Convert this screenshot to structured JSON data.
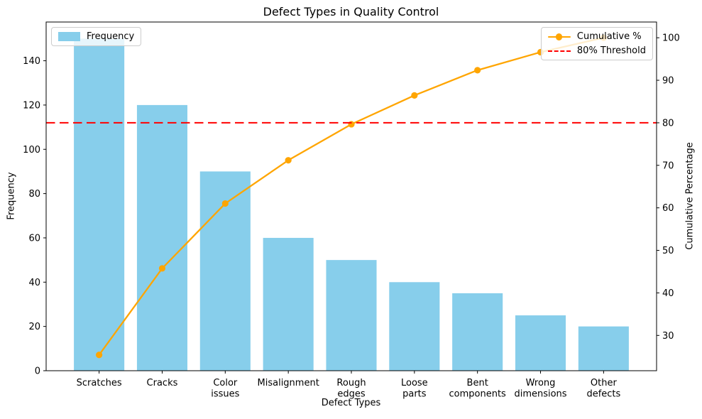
{
  "chart_data": {
    "type": "bar",
    "subtype": "pareto",
    "title": "Defect Types in Quality Control",
    "xlabel": "Defect Types",
    "ylabel_left": "Frequency",
    "ylabel_right": "Cumulative Percentage",
    "categories": [
      "Scratches",
      "Cracks",
      "Color issues",
      "Misalignment",
      "Rough edges",
      "Loose parts",
      "Bent components",
      "Wrong dimensions",
      "Other defects"
    ],
    "categories_wrapped": [
      [
        "Scratches"
      ],
      [
        "Cracks"
      ],
      [
        "Color",
        "issues"
      ],
      [
        "Misalignment"
      ],
      [
        "Rough",
        "edges"
      ],
      [
        "Loose",
        "parts"
      ],
      [
        "Bent",
        "components"
      ],
      [
        "Wrong",
        "dimensions"
      ],
      [
        "Other",
        "defects"
      ]
    ],
    "series": [
      {
        "name": "Frequency",
        "kind": "bar",
        "axis": "left",
        "values": [
          150,
          120,
          90,
          60,
          50,
          40,
          35,
          25,
          20
        ]
      },
      {
        "name": "Cumulative %",
        "kind": "line",
        "axis": "right",
        "values": [
          25.42,
          45.76,
          61.02,
          71.19,
          79.66,
          86.44,
          92.37,
          96.61,
          100.0
        ]
      }
    ],
    "threshold_line": {
      "label": "80% Threshold",
      "value": 80,
      "style": "dashed"
    },
    "yticks_left": [
      0,
      20,
      40,
      60,
      80,
      100,
      120,
      140
    ],
    "yticks_right": [
      30,
      40,
      50,
      60,
      70,
      80,
      90,
      100
    ],
    "ylim_left": [
      0,
      157.5
    ],
    "ylim_right": [
      21.7,
      103.7
    ],
    "grid": false,
    "legend_positions": {
      "frequency": "upper left",
      "cumulative": "upper right"
    },
    "colors": {
      "bar": "#87CEEB",
      "line": "#FFA500",
      "threshold": "#FF0000",
      "text": "#000000",
      "spine": "#000000"
    },
    "legends": {
      "left": {
        "items": [
          {
            "label": "Frequency",
            "swatch": "bar"
          }
        ]
      },
      "right": {
        "items": [
          {
            "label": "Cumulative %",
            "swatch": "line-marker"
          },
          {
            "label": "80% Threshold",
            "swatch": "dashed-line"
          }
        ]
      }
    }
  }
}
